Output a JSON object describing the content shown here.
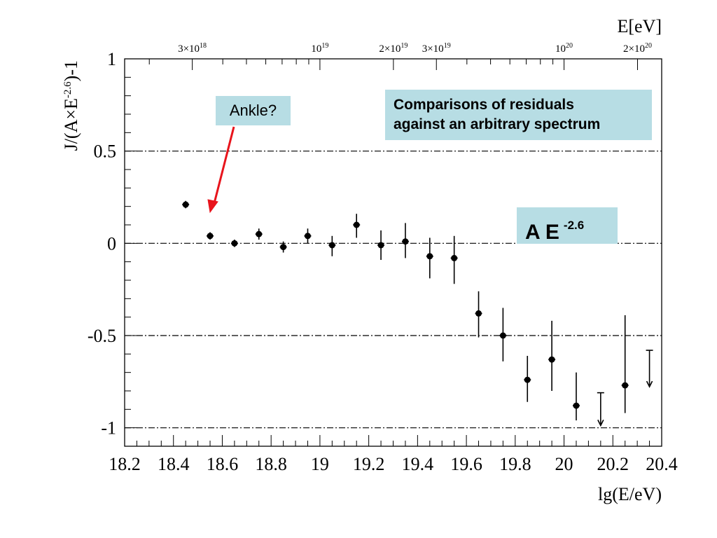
{
  "chart_data": {
    "type": "scatter",
    "xlabel": "lg(E/eV)",
    "ylabel": "J/(A×E-2.6)-1",
    "top_axis_label": "E[eV]",
    "xlim": [
      18.2,
      20.4
    ],
    "ylim": [
      -1.1,
      1.0
    ],
    "x_ticks": [
      18.2,
      18.4,
      18.6,
      18.8,
      19,
      19.2,
      19.4,
      19.6,
      19.8,
      20,
      20.2,
      20.4
    ],
    "x_tick_labels": [
      "18.2",
      "18.4",
      "18.6",
      "18.8",
      "19",
      "19.2",
      "19.4",
      "19.6",
      "19.8",
      "20",
      "20.2",
      "20.4"
    ],
    "y_ticks": [
      1,
      0.5,
      0,
      -0.5,
      -1
    ],
    "y_tick_labels": [
      "1",
      "0.5",
      "0",
      "-0.5",
      "-1"
    ],
    "top_ticks": [
      {
        "lg": 18.477,
        "base": "3×10",
        "exp": "18"
      },
      {
        "lg": 19.0,
        "base": "10",
        "exp": "19"
      },
      {
        "lg": 19.301,
        "base": "2×10",
        "exp": "19"
      },
      {
        "lg": 19.477,
        "base": "3×10",
        "exp": "19"
      },
      {
        "lg": 20.0,
        "base": "10",
        "exp": "20"
      },
      {
        "lg": 20.301,
        "base": "2×10",
        "exp": "20"
      }
    ],
    "reference_lines": [
      0.5,
      0,
      -0.5,
      -1
    ],
    "points": [
      {
        "x": 18.45,
        "y": 0.21,
        "err_lo": 0.02,
        "err_hi": 0.02
      },
      {
        "x": 18.55,
        "y": 0.04,
        "err_lo": 0.02,
        "err_hi": 0.02
      },
      {
        "x": 18.65,
        "y": 0.0,
        "err_lo": 0.02,
        "err_hi": 0.02
      },
      {
        "x": 18.75,
        "y": 0.05,
        "err_lo": 0.03,
        "err_hi": 0.03
      },
      {
        "x": 18.85,
        "y": -0.02,
        "err_lo": 0.03,
        "err_hi": 0.03
      },
      {
        "x": 18.95,
        "y": 0.04,
        "err_lo": 0.04,
        "err_hi": 0.04
      },
      {
        "x": 19.05,
        "y": -0.01,
        "err_lo": 0.06,
        "err_hi": 0.05
      },
      {
        "x": 19.15,
        "y": 0.1,
        "err_lo": 0.07,
        "err_hi": 0.06
      },
      {
        "x": 19.25,
        "y": -0.01,
        "err_lo": 0.08,
        "err_hi": 0.08
      },
      {
        "x": 19.35,
        "y": 0.01,
        "err_lo": 0.09,
        "err_hi": 0.1
      },
      {
        "x": 19.45,
        "y": -0.07,
        "err_lo": 0.12,
        "err_hi": 0.1
      },
      {
        "x": 19.55,
        "y": -0.08,
        "err_lo": 0.14,
        "err_hi": 0.12
      },
      {
        "x": 19.65,
        "y": -0.38,
        "err_lo": 0.13,
        "err_hi": 0.12
      },
      {
        "x": 19.75,
        "y": -0.5,
        "err_lo": 0.14,
        "err_hi": 0.15
      },
      {
        "x": 19.85,
        "y": -0.74,
        "err_lo": 0.12,
        "err_hi": 0.13
      },
      {
        "x": 19.95,
        "y": -0.63,
        "err_lo": 0.17,
        "err_hi": 0.21
      },
      {
        "x": 20.05,
        "y": -0.88,
        "err_lo": 0.08,
        "err_hi": 0.18
      },
      {
        "x": 20.15,
        "y": -0.98,
        "err_lo": 0.0,
        "err_hi": 0.17,
        "upper_limit": true
      },
      {
        "x": 20.25,
        "y": -0.77,
        "err_lo": 0.15,
        "err_hi": 0.38
      },
      {
        "x": 20.35,
        "y": -0.77,
        "err_lo": 0.0,
        "err_hi": 0.19,
        "upper_limit": true
      }
    ]
  },
  "annotations": {
    "ankle": "Ankle?",
    "comparison_line1": "Comparisons of residuals",
    "comparison_line2": "against an arbitrary spectrum",
    "spectrum_base": "A E",
    "spectrum_exp": "-2.6"
  },
  "colors": {
    "box_fill": "#b7dde4",
    "arrow": "#e8141c",
    "ink": "#000000"
  }
}
